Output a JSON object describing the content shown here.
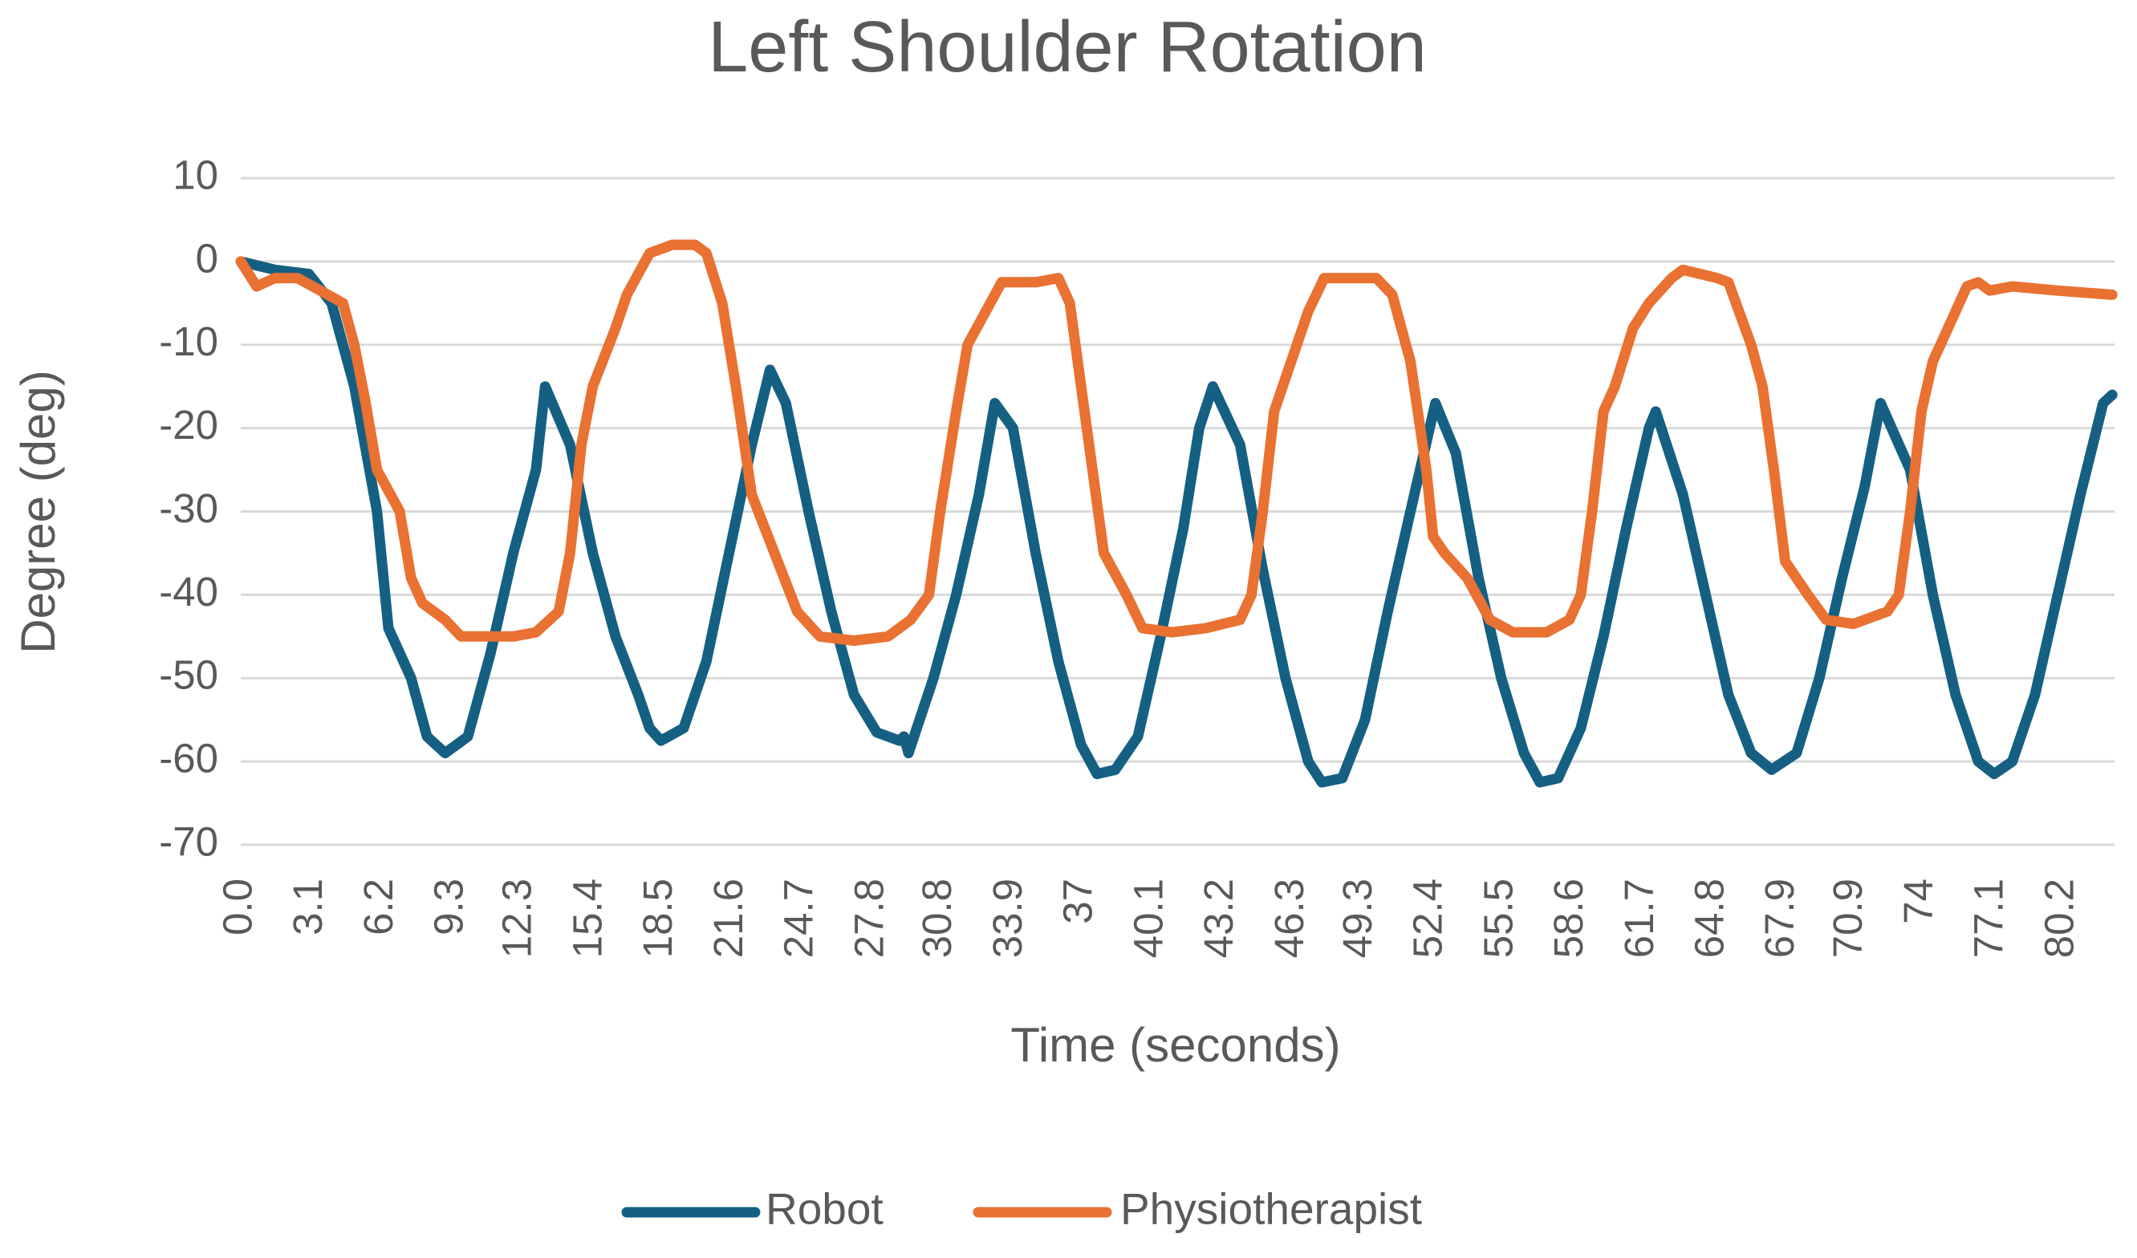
{
  "chart_data": {
    "type": "line",
    "title": "Left Shoulder Rotation",
    "x_label": "Time (seconds)",
    "y_label": "Degree (deg)",
    "xlim": [
      0,
      82.5
    ],
    "ylim": [
      -70,
      10
    ],
    "yticks": [
      10,
      0,
      -10,
      -20,
      -30,
      -40,
      -50,
      -60,
      -70
    ],
    "xticks": [
      {
        "value": 0,
        "label": "0.0"
      },
      3.1,
      6.2,
      9.3,
      12.3,
      15.4,
      18.5,
      21.6,
      24.7,
      27.8,
      30.8,
      33.9,
      37.0,
      40.1,
      43.2,
      46.3,
      49.3,
      52.4,
      55.5,
      58.6,
      61.7,
      64.8,
      67.9,
      70.9,
      74.0,
      77.1,
      80.2
    ],
    "grid": true,
    "legend": "bottom",
    "series": [
      {
        "name": "Robot",
        "color": "#156082",
        "x": [
          0,
          1.5,
          3,
          4,
          5,
          6,
          6.5,
          7.5,
          8.2,
          9,
          10,
          11,
          12,
          13,
          13.4,
          14.5,
          15.5,
          16.5,
          17.5,
          18,
          18.5,
          19.5,
          20.5,
          21.5,
          22.5,
          23.3,
          24,
          25,
          26,
          27,
          28,
          29,
          29.2,
          29.4,
          30.5,
          31.5,
          32.5,
          33.2,
          34,
          35,
          36,
          37,
          37.7,
          38.5,
          39.5,
          40.5,
          41.5,
          42.2,
          42.8,
          44,
          45,
          46,
          47,
          47.6,
          48.5,
          49.5,
          50.5,
          51.5,
          52.6,
          53.5,
          54.5,
          55.5,
          56.5,
          57.2,
          58,
          59,
          60,
          61,
          62,
          62.3,
          63.5,
          64.5,
          65.5,
          66.5,
          67.4,
          68.5,
          69.5,
          70.5,
          71.5,
          72.2,
          73.5,
          74.5,
          75.5,
          76.5,
          77.2,
          78,
          79,
          80,
          81,
          82,
          82.4
        ],
        "values": [
          0,
          -1,
          -1.5,
          -5,
          -15,
          -30,
          -44,
          -50,
          -57,
          -59,
          -57,
          -47,
          -35,
          -25,
          -15,
          -22,
          -35,
          -45,
          -52,
          -56,
          -57.5,
          -56,
          -48,
          -35,
          -22,
          -13,
          -17,
          -30,
          -42,
          -52,
          -56.5,
          -57.5,
          -57,
          -59,
          -50,
          -40,
          -28,
          -17,
          -20,
          -35,
          -48,
          -58,
          -61.5,
          -61,
          -57,
          -45,
          -32,
          -20,
          -15,
          -22,
          -37,
          -50,
          -60,
          -62.5,
          -62,
          -55,
          -42,
          -30,
          -17,
          -23,
          -38,
          -50,
          -59,
          -62.5,
          -62,
          -56,
          -45,
          -32,
          -20,
          -18,
          -28,
          -40,
          -52,
          -59,
          -61,
          -59,
          -50,
          -38,
          -27,
          -17,
          -25,
          -40,
          -52,
          -60,
          -61.5,
          -60,
          -52,
          -40,
          -28,
          -17,
          -16
        ]
      },
      {
        "name": "Physiotherapist",
        "color": "#e97132",
        "x": [
          0,
          0.7,
          1.5,
          2.5,
          3.5,
          4.5,
          5,
          5.5,
          6,
          7,
          7.5,
          8,
          9,
          9.7,
          10.5,
          12,
          13,
          14,
          14.5,
          15,
          15.5,
          16.5,
          17,
          18,
          19,
          20,
          20.5,
          21.2,
          21.8,
          22.5,
          23.5,
          24.5,
          25.5,
          27,
          28.5,
          29.5,
          30.3,
          30.8,
          31.5,
          32,
          33,
          33.5,
          35,
          36,
          36.5,
          37,
          37.5,
          38,
          39,
          39.7,
          41,
          42.5,
          44,
          44.5,
          45,
          45.5,
          46,
          47,
          47.7,
          49,
          50,
          50.7,
          51.5,
          52.2,
          52.5,
          53,
          54,
          55,
          56,
          57.5,
          58.5,
          59,
          59.5,
          60,
          60.5,
          61.3,
          62,
          63,
          63.5,
          65,
          65.5,
          66.5,
          67,
          67.5,
          68,
          69,
          69.8,
          71,
          72.5,
          73,
          73.5,
          74,
          74.5,
          75.5,
          76,
          76.5,
          77,
          78,
          80,
          82.4
        ],
        "values": [
          0,
          -3,
          -2,
          -2,
          -3.5,
          -5,
          -10,
          -17,
          -25,
          -30,
          -38,
          -41,
          -43,
          -45,
          -45,
          -45,
          -44.5,
          -42,
          -35,
          -22,
          -15,
          -8,
          -4,
          1,
          2,
          2,
          1,
          -5,
          -15,
          -28,
          -35,
          -42,
          -45,
          -45.5,
          -45,
          -43,
          -40,
          -30,
          -18,
          -10,
          -5,
          -2.5,
          -2.5,
          -2,
          -5,
          -15,
          -25,
          -35,
          -40,
          -44,
          -44.5,
          -44,
          -43,
          -40,
          -30,
          -18,
          -14,
          -6,
          -2,
          -2,
          -2,
          -4,
          -12,
          -25,
          -33,
          -35,
          -38,
          -43,
          -44.5,
          -44.5,
          -43,
          -40,
          -30,
          -18,
          -15,
          -8,
          -5,
          -2,
          -1,
          -2,
          -2.5,
          -10,
          -15,
          -25,
          -36,
          -40,
          -43,
          -43.5,
          -42,
          -40,
          -30,
          -18,
          -12,
          -6,
          -3,
          -2.5,
          -3.5,
          -3,
          -3.5,
          -4
        ]
      }
    ]
  }
}
